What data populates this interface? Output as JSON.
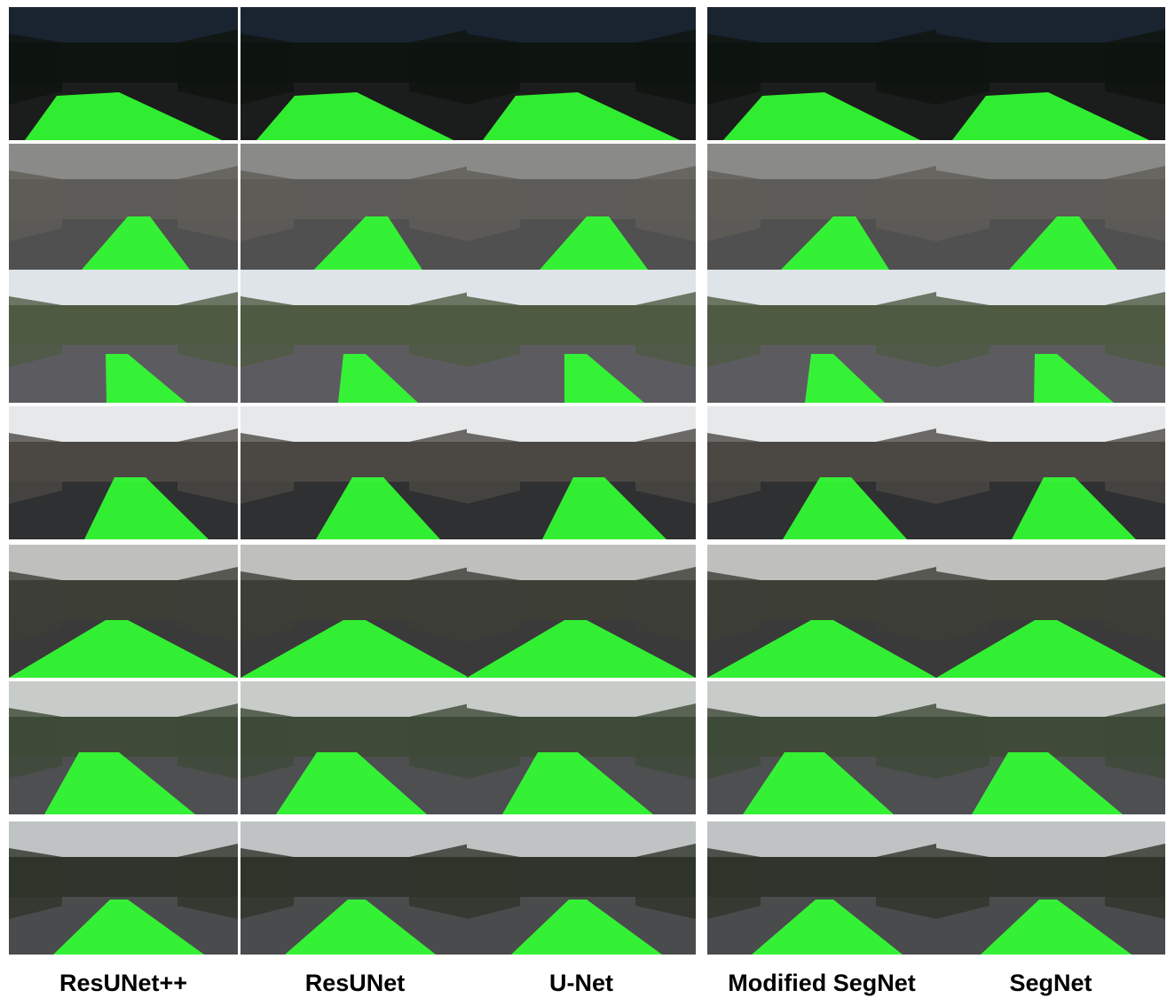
{
  "columns": [
    "ResUNet++",
    "ResUNet",
    "U-Net",
    "Modified SegNet",
    "SegNet"
  ]
}
